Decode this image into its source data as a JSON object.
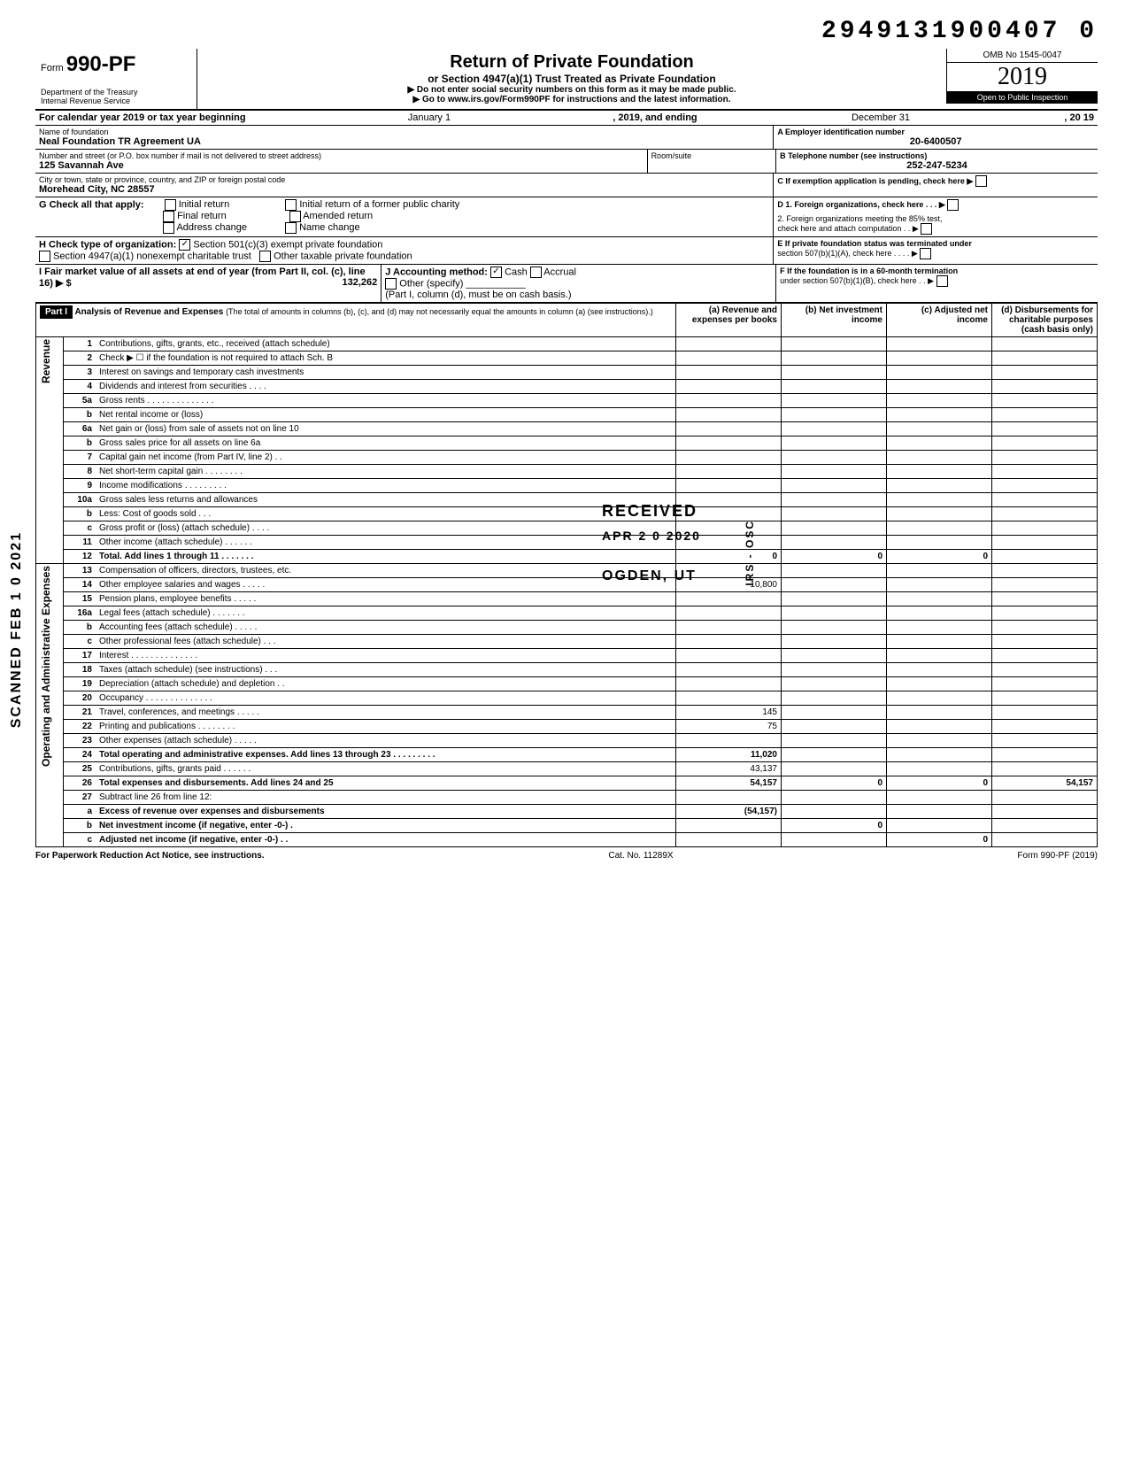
{
  "doc_number": "2949131900407 0",
  "form": {
    "prefix": "Form",
    "number": "990-PF",
    "dept": "Department of the Treasury",
    "irs": "Internal Revenue Service"
  },
  "title": {
    "main": "Return of Private Foundation",
    "sub": "or Section 4947(a)(1) Trust Treated as Private Foundation",
    "note1": "▶ Do not enter social security numbers on this form as it may be made public.",
    "note2": "▶ Go to www.irs.gov/Form990PF for instructions and the latest information."
  },
  "yearbox": {
    "omb": "OMB No 1545-0047",
    "year": "2019",
    "inspect": "Open to Public Inspection"
  },
  "cal": {
    "line": "For calendar year 2019 or tax year beginning",
    "begin": "January 1",
    "mid": ", 2019, and ending",
    "end": "December 31",
    "tail": ", 20   19"
  },
  "id": {
    "name_label": "Name of foundation",
    "name": "Neal Foundation TR Agreement UA",
    "ein_label": "A  Employer identification number",
    "ein": "20-6400507",
    "addr_label": "Number and street (or P.O. box number if mail is not delivered to street address)",
    "addr": "125 Savannah Ave",
    "room_label": "Room/suite",
    "room": "",
    "tel_label": "B  Telephone number (see instructions)",
    "tel": "252-247-5234",
    "city_label": "City or town, state or province, country, and ZIP or foreign postal code",
    "city": "Morehead City, NC 28557",
    "c_label": "C  If exemption application is pending, check here ▶"
  },
  "g": {
    "label": "G  Check all that apply:",
    "opts": [
      "Initial return",
      "Final return",
      "Address change",
      "Initial return of a former public charity",
      "Amended return",
      "Name change"
    ]
  },
  "d": {
    "d1": "D  1. Foreign organizations, check here  .  .  .  ▶",
    "d2a": "2. Foreign organizations meeting the 85% test,",
    "d2b": "check here and attach computation  .  .  ▶"
  },
  "h": {
    "label": "H  Check type of organization:",
    "opt1": "Section 501(c)(3) exempt private foundation",
    "opt2": "Section 4947(a)(1) nonexempt charitable trust",
    "opt3": "Other taxable private foundation"
  },
  "e": {
    "e1": "E  If private foundation status was terminated under",
    "e2": "section 507(b)(1)(A), check here  .  .  .  .  ▶"
  },
  "i": {
    "label": "I   Fair market value of all assets at end of year (from Part II, col. (c), line 16) ▶ $",
    "val": "132,262"
  },
  "j": {
    "label": "J  Accounting method:",
    "cash": "Cash",
    "accrual": "Accrual",
    "other": "Other (specify)",
    "note": "(Part I, column (d), must be on cash basis.)"
  },
  "f": {
    "f1": "F  If the foundation is in a 60-month termination",
    "f2": "under section 507(b)(1)(B), check here  .  . ▶"
  },
  "part1": {
    "label": "Part I",
    "heading": "Analysis of Revenue and Expenses",
    "heading2": "(The total of amounts in columns (b), (c), and (d) may not necessarily equal the amounts in column (a) (see instructions).)",
    "cols": {
      "a": "(a) Revenue and expenses per books",
      "b": "(b) Net investment income",
      "c": "(c) Adjusted net income",
      "d": "(d) Disbursements for charitable purposes (cash basis only)"
    }
  },
  "side_labels": {
    "revenue": "Revenue",
    "opadmin": "Operating and Administrative Expenses",
    "scanned": "SCANNED  FEB 1 0 2021"
  },
  "rows": [
    {
      "n": "1",
      "d": "Contributions, gifts, grants, etc., received (attach schedule)"
    },
    {
      "n": "2",
      "d": "Check ▶ ☐ if the foundation is not required to attach Sch. B"
    },
    {
      "n": "3",
      "d": "Interest on savings and temporary cash investments"
    },
    {
      "n": "4",
      "d": "Dividends and interest from securities  .  .  .  ."
    },
    {
      "n": "5a",
      "d": "Gross rents .  .  .  .  .  .  .  .  .  .  .  .  .  ."
    },
    {
      "n": "b",
      "d": "Net rental income or (loss)"
    },
    {
      "n": "6a",
      "d": "Net gain or (loss) from sale of assets not on line 10"
    },
    {
      "n": "b",
      "d": "Gross sales price for all assets on line 6a"
    },
    {
      "n": "7",
      "d": "Capital gain net income (from Part IV, line 2)  .  ."
    },
    {
      "n": "8",
      "d": "Net short-term capital gain .  .  .  .  .  .  .  ."
    },
    {
      "n": "9",
      "d": "Income modifications    .  .  .  .  .  .  .  .  ."
    },
    {
      "n": "10a",
      "d": "Gross sales less returns and allowances"
    },
    {
      "n": "b",
      "d": "Less: Cost of goods sold  .  .  ."
    },
    {
      "n": "c",
      "d": "Gross profit or (loss) (attach schedule)  .  .  .  ."
    },
    {
      "n": "11",
      "d": "Other income (attach schedule)  .  .  .  .  .  ."
    },
    {
      "n": "12",
      "d": "Total. Add lines 1 through 11  .  .  .  .  .  .  .",
      "a": "0",
      "b": "0",
      "c": "0",
      "bold": true
    },
    {
      "n": "13",
      "d": "Compensation of officers, directors, trustees, etc."
    },
    {
      "n": "14",
      "d": "Other employee salaries and wages .  .  .  .  .",
      "a": "10,800"
    },
    {
      "n": "15",
      "d": "Pension plans, employee benefits  .  .  .  .  ."
    },
    {
      "n": "16a",
      "d": "Legal fees (attach schedule)  .  .  .  .  .  .  ."
    },
    {
      "n": "b",
      "d": "Accounting fees (attach schedule)  .  .  .  .  ."
    },
    {
      "n": "c",
      "d": "Other professional fees (attach schedule)  .  .  ."
    },
    {
      "n": "17",
      "d": "Interest  .  .  .  .  .  .  .  .  .  .  .  .  .  ."
    },
    {
      "n": "18",
      "d": "Taxes (attach schedule) (see instructions)  .  .  ."
    },
    {
      "n": "19",
      "d": "Depreciation (attach schedule) and depletion .  ."
    },
    {
      "n": "20",
      "d": "Occupancy .  .  .  .  .  .  .  .  .  .  .  .  .  ."
    },
    {
      "n": "21",
      "d": "Travel, conferences, and meetings  .  .  .  .  .",
      "a": "145"
    },
    {
      "n": "22",
      "d": "Printing and publications  .  .  .  .  .  .  .  .",
      "a": "75"
    },
    {
      "n": "23",
      "d": "Other expenses (attach schedule)  .  .  .  .  ."
    },
    {
      "n": "24",
      "d": "Total operating and administrative expenses. Add lines 13 through 23 .  .  .  .  .  .  .  .  .",
      "a": "11,020",
      "bold": true
    },
    {
      "n": "25",
      "d": "Contributions, gifts, grants paid  .  .  .  .  .  .",
      "a": "43,137"
    },
    {
      "n": "26",
      "d": "Total expenses and disbursements. Add lines 24 and 25",
      "a": "54,157",
      "b": "0",
      "c": "0",
      "dd": "54,157",
      "bold": true
    },
    {
      "n": "27",
      "d": "Subtract line 26 from line 12:"
    },
    {
      "n": "a",
      "d": "Excess of revenue over expenses and disbursements",
      "a": "(54,157)",
      "bold": true
    },
    {
      "n": "b",
      "d": "Net investment income (if negative, enter -0-)  .",
      "b": "0",
      "bold": true
    },
    {
      "n": "c",
      "d": "Adjusted net income (if negative, enter -0-)  .  .",
      "c": "0",
      "bold": true
    }
  ],
  "stamps": {
    "received": "RECEIVED",
    "date": "APR 2 0 2020",
    "ogden": "OGDEN, UT",
    "irs_osc": "IRS - OSC"
  },
  "footer": {
    "left": "For Paperwork Reduction Act Notice, see instructions.",
    "mid": "Cat. No. 11289X",
    "right": "Form 990-PF (2019)"
  }
}
